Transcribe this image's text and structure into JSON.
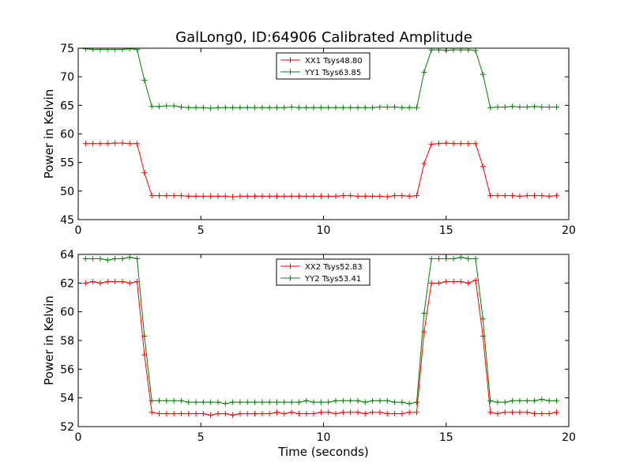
{
  "title": "GalLong0, ID:64906 Calibrated Amplitude",
  "chart_data": [
    {
      "type": "line",
      "ylabel": "Power in Kelvin",
      "xlabel": "",
      "xlim": [
        0,
        20
      ],
      "ylim": [
        45,
        75
      ],
      "xticks": [
        0,
        5,
        10,
        15,
        20
      ],
      "yticks": [
        45,
        50,
        55,
        60,
        65,
        70,
        75
      ],
      "grid": false,
      "legend": "top-center",
      "x": [
        0.3,
        0.6,
        0.9,
        1.2,
        1.5,
        1.8,
        2.1,
        2.4,
        2.7,
        3.0,
        3.3,
        3.6,
        3.9,
        4.2,
        4.5,
        4.8,
        5.1,
        5.4,
        5.7,
        6.0,
        6.3,
        6.6,
        6.9,
        7.2,
        7.5,
        7.8,
        8.1,
        8.4,
        8.7,
        9.0,
        9.3,
        9.6,
        9.9,
        10.2,
        10.5,
        10.8,
        11.1,
        11.4,
        11.7,
        12.0,
        12.3,
        12.6,
        12.9,
        13.2,
        13.5,
        13.8,
        14.1,
        14.4,
        14.7,
        15.0,
        15.3,
        15.6,
        15.9,
        16.2,
        16.5,
        16.8,
        17.1,
        17.4,
        17.7,
        18.0,
        18.3,
        18.6,
        18.9,
        19.2,
        19.5
      ],
      "series": [
        {
          "name": "XX1 Tsys48.80",
          "color": "#ff0000",
          "values": [
            58.3,
            58.3,
            58.3,
            58.3,
            58.4,
            58.4,
            58.3,
            58.3,
            53.2,
            49.2,
            49.2,
            49.2,
            49.2,
            49.2,
            49.1,
            49.1,
            49.1,
            49.1,
            49.1,
            49.1,
            49.0,
            49.1,
            49.1,
            49.1,
            49.1,
            49.1,
            49.1,
            49.1,
            49.1,
            49.1,
            49.1,
            49.1,
            49.1,
            49.1,
            49.1,
            49.2,
            49.2,
            49.1,
            49.1,
            49.1,
            49.1,
            49.0,
            49.2,
            49.2,
            49.1,
            49.2,
            54.8,
            58.2,
            58.3,
            58.4,
            58.3,
            58.3,
            58.3,
            58.3,
            54.3,
            49.2,
            49.2,
            49.2,
            49.2,
            49.1,
            49.2,
            49.2,
            49.2,
            49.1,
            49.2
          ]
        },
        {
          "name": "YY1 Tsys63.85",
          "color": "#008000",
          "values": [
            74.9,
            74.8,
            74.8,
            74.8,
            74.8,
            74.8,
            74.9,
            74.8,
            69.4,
            64.8,
            64.8,
            64.9,
            64.9,
            64.7,
            64.6,
            64.6,
            64.6,
            64.5,
            64.6,
            64.6,
            64.6,
            64.6,
            64.6,
            64.6,
            64.6,
            64.6,
            64.6,
            64.6,
            64.7,
            64.6,
            64.6,
            64.6,
            64.6,
            64.6,
            64.6,
            64.6,
            64.6,
            64.6,
            64.6,
            64.6,
            64.7,
            64.7,
            64.7,
            64.6,
            64.6,
            64.6,
            70.8,
            74.7,
            74.7,
            74.6,
            74.7,
            74.7,
            74.7,
            74.6,
            70.4,
            64.6,
            64.7,
            64.7,
            64.8,
            64.7,
            64.7,
            64.8,
            64.7,
            64.7,
            64.7
          ]
        }
      ]
    },
    {
      "type": "line",
      "ylabel": "Power in Kelvin",
      "xlabel": "Time (seconds)",
      "xlim": [
        0,
        20
      ],
      "ylim": [
        52,
        64
      ],
      "xticks": [
        0,
        5,
        10,
        15,
        20
      ],
      "yticks": [
        52,
        54,
        56,
        58,
        60,
        62,
        64
      ],
      "grid": false,
      "legend": "top-center",
      "x": [
        0.3,
        0.6,
        0.9,
        1.2,
        1.5,
        1.8,
        2.1,
        2.4,
        2.7,
        3.0,
        3.3,
        3.6,
        3.9,
        4.2,
        4.5,
        4.8,
        5.1,
        5.4,
        5.7,
        6.0,
        6.3,
        6.6,
        6.9,
        7.2,
        7.5,
        7.8,
        8.1,
        8.4,
        8.7,
        9.0,
        9.3,
        9.6,
        9.9,
        10.2,
        10.5,
        10.8,
        11.1,
        11.4,
        11.7,
        12.0,
        12.3,
        12.6,
        12.9,
        13.2,
        13.5,
        13.8,
        14.1,
        14.4,
        14.7,
        15.0,
        15.3,
        15.6,
        15.9,
        16.2,
        16.5,
        16.8,
        17.1,
        17.4,
        17.7,
        18.0,
        18.3,
        18.6,
        18.9,
        19.2,
        19.5
      ],
      "series": [
        {
          "name": "XX2 Tsys52.83",
          "color": "#ff0000",
          "values": [
            62.0,
            62.1,
            62.0,
            62.1,
            62.1,
            62.1,
            62.0,
            62.1,
            57.0,
            53.0,
            52.9,
            52.9,
            52.9,
            52.9,
            52.9,
            52.9,
            52.9,
            52.8,
            52.9,
            52.9,
            52.8,
            52.9,
            52.9,
            52.9,
            52.9,
            52.9,
            53.0,
            52.9,
            53.0,
            52.9,
            52.9,
            52.9,
            53.0,
            53.0,
            52.9,
            53.0,
            53.0,
            53.0,
            52.9,
            53.0,
            53.0,
            52.9,
            52.9,
            52.9,
            53.0,
            53.0,
            58.6,
            62.0,
            62.0,
            62.1,
            62.1,
            62.1,
            62.0,
            62.2,
            58.3,
            53.0,
            52.9,
            53.0,
            53.0,
            53.0,
            53.0,
            52.9,
            52.9,
            52.9,
            53.0
          ]
        },
        {
          "name": "YY2 Tsys53.41",
          "color": "#008000",
          "values": [
            63.7,
            63.7,
            63.7,
            63.6,
            63.7,
            63.7,
            63.8,
            63.7,
            58.3,
            53.8,
            53.8,
            53.8,
            53.8,
            53.8,
            53.7,
            53.7,
            53.7,
            53.7,
            53.7,
            53.6,
            53.7,
            53.7,
            53.7,
            53.7,
            53.7,
            53.7,
            53.7,
            53.7,
            53.7,
            53.7,
            53.8,
            53.7,
            53.7,
            53.7,
            53.8,
            53.8,
            53.8,
            53.8,
            53.7,
            53.8,
            53.8,
            53.8,
            53.7,
            53.7,
            53.6,
            53.7,
            59.9,
            63.7,
            63.7,
            63.7,
            63.7,
            63.8,
            63.7,
            63.7,
            59.5,
            53.8,
            53.7,
            53.7,
            53.8,
            53.8,
            53.8,
            53.8,
            53.9,
            53.8,
            53.8
          ]
        }
      ]
    }
  ]
}
